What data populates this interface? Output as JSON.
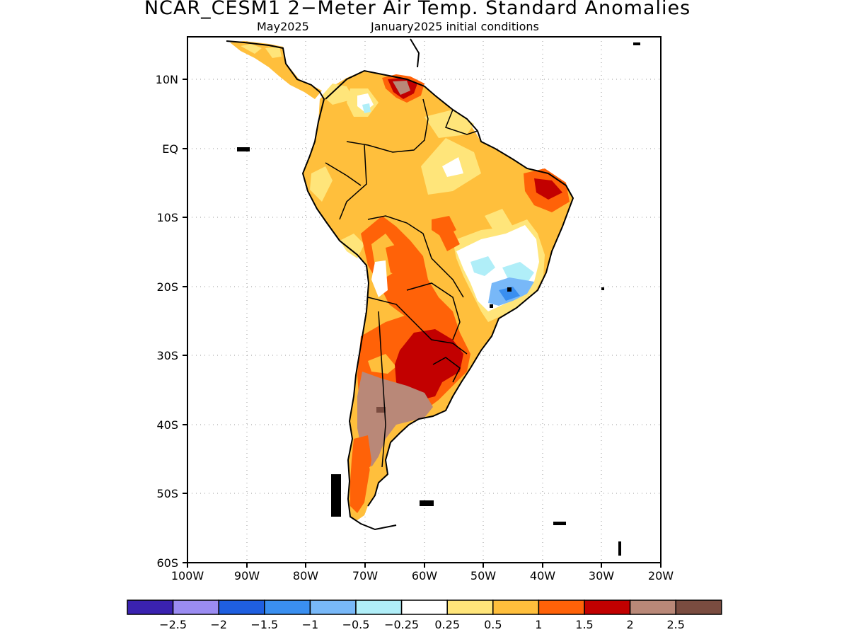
{
  "title": "NCAR_CESM1 2−Meter Air Temp. Standard Anomalies",
  "subtitle_left": "May2025",
  "subtitle_right": "January2025 initial conditions",
  "lat_labels": [
    "10N",
    "EQ",
    "10S",
    "20S",
    "30S",
    "40S",
    "50S",
    "60S"
  ],
  "lon_labels": [
    "100W",
    "90W",
    "80W",
    "70W",
    "60W",
    "50W",
    "40W",
    "30W",
    "20W"
  ],
  "colorbar": {
    "colors": [
      "#3a22b0",
      "#9b8cf2",
      "#1f5fe0",
      "#3a8ff0",
      "#78b8f8",
      "#b0eef8",
      "#ffffff",
      "#ffe57a",
      "#ffbf3c",
      "#ff6208",
      "#c20000",
      "#b98878",
      "#7a4c40"
    ],
    "labels": [
      "−2.5",
      "−2",
      "−1.5",
      "−1",
      "−0.5",
      "−0.25",
      "0.25",
      "0.5",
      "1",
      "1.5",
      "2",
      "2.5"
    ]
  }
}
